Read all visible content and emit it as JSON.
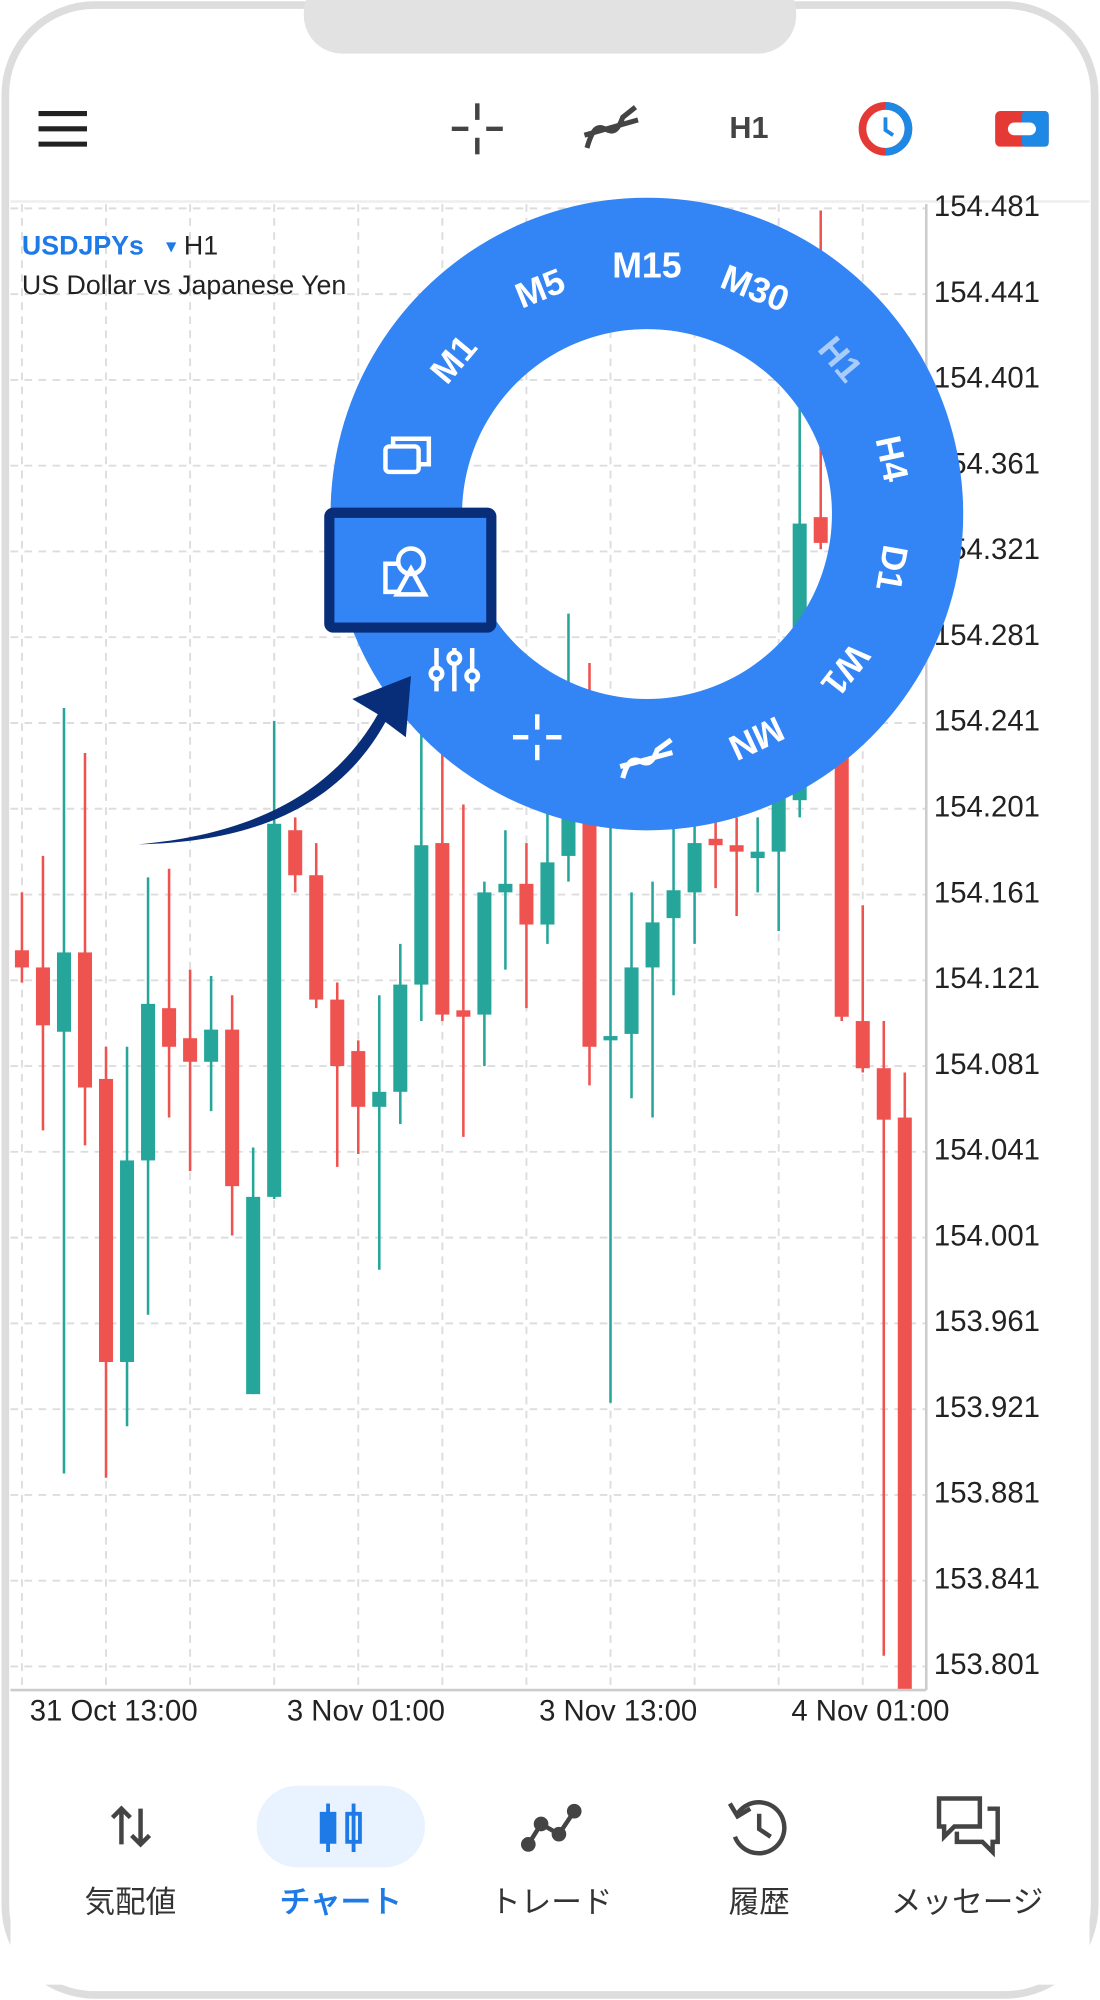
{
  "toolbar": {
    "timeframe": "H1"
  },
  "chart_data": {
    "type": "candlestick",
    "symbol": "USDJPYs",
    "period": "H1",
    "description": "US Dollar vs Japanese Yen",
    "categories": [
      null,
      null,
      null,
      null,
      "31 Oct 13:00",
      null,
      null,
      null,
      null,
      null,
      null,
      null,
      null,
      null,
      null,
      null,
      "3 Nov 01:00",
      null,
      null,
      null,
      null,
      null,
      null,
      null,
      null,
      null,
      null,
      null,
      "3 Nov 13:00",
      null,
      null,
      null,
      null,
      null,
      null,
      null,
      null,
      null,
      null,
      null,
      "4 Nov 01:00",
      null,
      null
    ],
    "open": [
      154.135,
      154.127,
      154.097,
      154.134,
      154.075,
      153.943,
      154.037,
      154.108,
      154.094,
      154.083,
      154.098,
      153.928,
      154.02,
      154.191,
      154.17,
      154.112,
      154.088,
      154.062,
      154.069,
      154.119,
      154.185,
      154.107,
      154.105,
      154.162,
      154.166,
      154.147,
      154.179,
      154.197,
      154.093,
      154.096,
      154.127,
      154.15,
      154.162,
      154.187,
      154.184,
      154.178,
      154.181,
      154.205,
      154.337,
      154.227,
      154.102,
      154.08,
      154.057
    ],
    "high": [
      154.162,
      154.179,
      154.248,
      154.227,
      154.09,
      154.09,
      154.169,
      154.173,
      154.126,
      154.123,
      154.114,
      154.043,
      154.242,
      154.197,
      154.185,
      154.12,
      154.093,
      154.114,
      154.138,
      154.239,
      154.227,
      154.203,
      154.167,
      154.191,
      154.185,
      154.203,
      154.292,
      154.269,
      154.221,
      154.162,
      154.167,
      154.197,
      154.197,
      154.197,
      154.197,
      154.197,
      154.221,
      154.394,
      154.48,
      154.245,
      154.156,
      154.102,
      154.078
    ],
    "low": [
      154.12,
      154.051,
      153.891,
      154.044,
      153.889,
      153.913,
      153.965,
      154.057,
      154.032,
      154.06,
      154.002,
      153.928,
      154.019,
      154.162,
      154.108,
      154.034,
      154.04,
      153.986,
      154.054,
      154.102,
      154.102,
      154.048,
      154.081,
      154.126,
      154.108,
      154.138,
      154.167,
      154.072,
      153.924,
      154.066,
      154.057,
      154.114,
      154.138,
      154.164,
      154.151,
      154.162,
      154.144,
      154.197,
      154.322,
      154.102,
      154.078,
      153.806,
      153.79
    ],
    "close": [
      154.127,
      154.1,
      154.134,
      154.071,
      153.943,
      154.037,
      154.11,
      154.09,
      154.083,
      154.098,
      154.025,
      154.02,
      154.194,
      154.17,
      154.112,
      154.081,
      154.062,
      154.069,
      154.119,
      154.184,
      154.105,
      154.104,
      154.162,
      154.166,
      154.147,
      154.176,
      154.197,
      154.09,
      154.095,
      154.127,
      154.148,
      154.163,
      154.185,
      154.184,
      154.181,
      154.181,
      154.209,
      154.334,
      154.325,
      154.104,
      154.08,
      154.056,
      153.79
    ],
    "up_color": "#26a69a",
    "down_color": "#ef5350",
    "ylim": [
      153.79,
      154.483
    ],
    "yticks": [
      154.481,
      154.441,
      154.401,
      154.361,
      154.321,
      154.281,
      154.241,
      154.201,
      154.161,
      154.121,
      154.081,
      154.041,
      154.001,
      153.961,
      153.921,
      153.881,
      153.841,
      153.801
    ],
    "grid": true
  },
  "timeframe_menu": {
    "items": [
      "M1",
      "M5",
      "M15",
      "M30",
      "H1",
      "H4",
      "D1",
      "W1",
      "MN"
    ],
    "active": 4
  },
  "nav": {
    "items": [
      "気配値",
      "チャート",
      "トレード",
      "履歴",
      "メッセージ"
    ],
    "active": 1
  }
}
